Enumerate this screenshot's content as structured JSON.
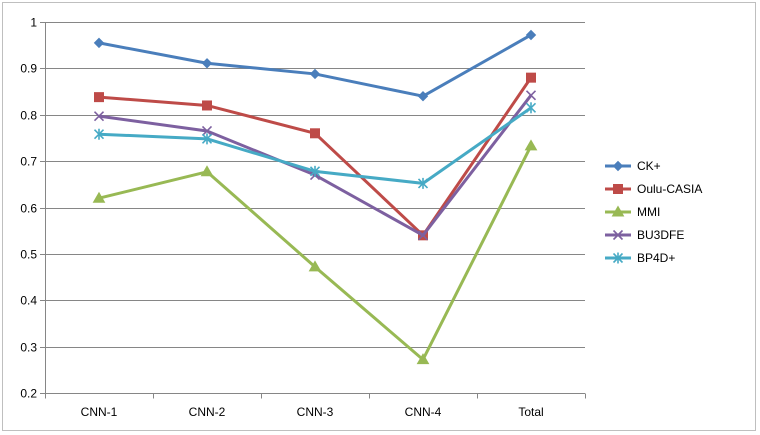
{
  "chart_data": {
    "type": "line",
    "categories": [
      "CNN-1",
      "CNN-2",
      "CNN-3",
      "CNN-4",
      "Total"
    ],
    "ylim": [
      0.2,
      1
    ],
    "yticks": [
      "0.2",
      "0.3",
      "0.4",
      "0.5",
      "0.6",
      "0.7",
      "0.8",
      "0.9",
      "1"
    ],
    "grid": true,
    "legend_position": "right",
    "series": [
      {
        "name": "CK+",
        "color": "#4a7ebb",
        "marker": "diamond",
        "values": [
          0.955,
          0.911,
          0.888,
          0.84,
          0.972
        ]
      },
      {
        "name": "Oulu-CASIA",
        "color": "#be4b48",
        "marker": "square",
        "values": [
          0.838,
          0.82,
          0.76,
          0.54,
          0.88
        ]
      },
      {
        "name": "MMI",
        "color": "#98b954",
        "marker": "triangle",
        "values": [
          0.62,
          0.677,
          0.472,
          0.272,
          0.733
        ]
      },
      {
        "name": "BU3DFE",
        "color": "#7d60a0",
        "marker": "x",
        "values": [
          0.797,
          0.765,
          0.67,
          0.54,
          0.842
        ]
      },
      {
        "name": "BP4D+",
        "color": "#46aac5",
        "marker": "star",
        "values": [
          0.758,
          0.748,
          0.678,
          0.652,
          0.815
        ]
      }
    ]
  }
}
